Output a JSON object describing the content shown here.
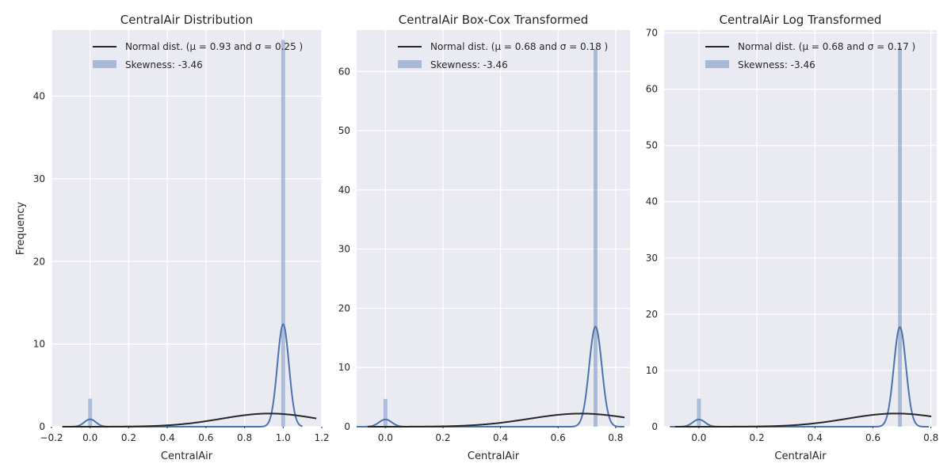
{
  "chart_data": [
    {
      "type": "histogram",
      "title": "CentralAir Distribution",
      "xlabel": "CentralAir",
      "ylabel": "Frequency",
      "xlim": [
        -0.2,
        1.2
      ],
      "ylim": [
        0,
        48
      ],
      "xticks": [
        -0.2,
        0.0,
        0.2,
        0.4,
        0.6,
        0.8,
        1.0,
        1.2
      ],
      "xtick_labels": [
        "−0.2",
        "0.0",
        "0.2",
        "0.4",
        "0.6",
        "0.8",
        "1.0",
        "1.2"
      ],
      "yticks": [
        0,
        10,
        20,
        30,
        40
      ],
      "bins": [
        {
          "x": 0.0,
          "height": 3.4
        },
        {
          "x": 1.0,
          "height": 46.8
        }
      ],
      "kde_peaks": [
        {
          "mu": 0.0,
          "sigma": 0.03,
          "weight": 0.0677
        },
        {
          "mu": 1.0,
          "sigma": 0.03,
          "weight": 0.9323
        }
      ],
      "normal": {
        "mu": 0.93,
        "sigma": 0.25
      },
      "legend": {
        "normal_label": "Normal dist. (μ =  0.93 and σ =  0.25 )",
        "hist_label": "Skewness: -3.46",
        "placement": "top-right"
      },
      "grid": true
    },
    {
      "type": "histogram",
      "title": "CentralAir Box-Cox Transformed",
      "xlabel": "CentralAir",
      "ylabel": "",
      "xlim": [
        -0.1,
        0.85
      ],
      "ylim": [
        0,
        67
      ],
      "xticks": [
        0.0,
        0.2,
        0.4,
        0.6,
        0.8
      ],
      "xtick_labels": [
        "0.0",
        "0.2",
        "0.4",
        "0.6",
        "0.8"
      ],
      "yticks": [
        0,
        10,
        20,
        30,
        40,
        50,
        60
      ],
      "bins": [
        {
          "x": 0.0,
          "height": 4.7
        },
        {
          "x": 0.73,
          "height": 63.8
        }
      ],
      "kde_peaks": [
        {
          "mu": 0.0,
          "sigma": 0.022,
          "weight": 0.0677
        },
        {
          "mu": 0.73,
          "sigma": 0.022,
          "weight": 0.9323
        }
      ],
      "normal": {
        "mu": 0.68,
        "sigma": 0.18
      },
      "legend": {
        "normal_label": "Normal dist. (μ =  0.68 and σ =  0.18 )",
        "hist_label": "Skewness: -3.46",
        "placement": "top-right"
      },
      "grid": true
    },
    {
      "type": "histogram",
      "title": "CentralAir Log Transformed",
      "xlabel": "CentralAir",
      "ylabel": "",
      "xlim": [
        -0.12,
        0.82
      ],
      "ylim": [
        0,
        70.5
      ],
      "xticks": [
        0.0,
        0.2,
        0.4,
        0.6,
        0.8
      ],
      "xtick_labels": [
        "0.0",
        "0.2",
        "0.4",
        "0.6",
        "0.8"
      ],
      "yticks": [
        0,
        10,
        20,
        30,
        40,
        50,
        60,
        70
      ],
      "bins": [
        {
          "x": 0.0,
          "height": 5.0
        },
        {
          "x": 0.693,
          "height": 67.4
        }
      ],
      "kde_peaks": [
        {
          "mu": 0.0,
          "sigma": 0.021,
          "weight": 0.0677
        },
        {
          "mu": 0.693,
          "sigma": 0.021,
          "weight": 0.9323
        }
      ],
      "normal": {
        "mu": 0.68,
        "sigma": 0.17
      },
      "legend": {
        "normal_label": "Normal dist. (μ =  0.68 and σ =  0.17 )",
        "hist_label": "Skewness: -3.46",
        "placement": "top-right"
      },
      "grid": true
    }
  ],
  "colors": {
    "figure_bg": "#ffffff",
    "axes_bg": "#eaeaf2",
    "grid": "#ffffff",
    "hist": "#4c72b0",
    "kde": "#4c72b0",
    "normal": "#262626",
    "text": "#262626"
  }
}
